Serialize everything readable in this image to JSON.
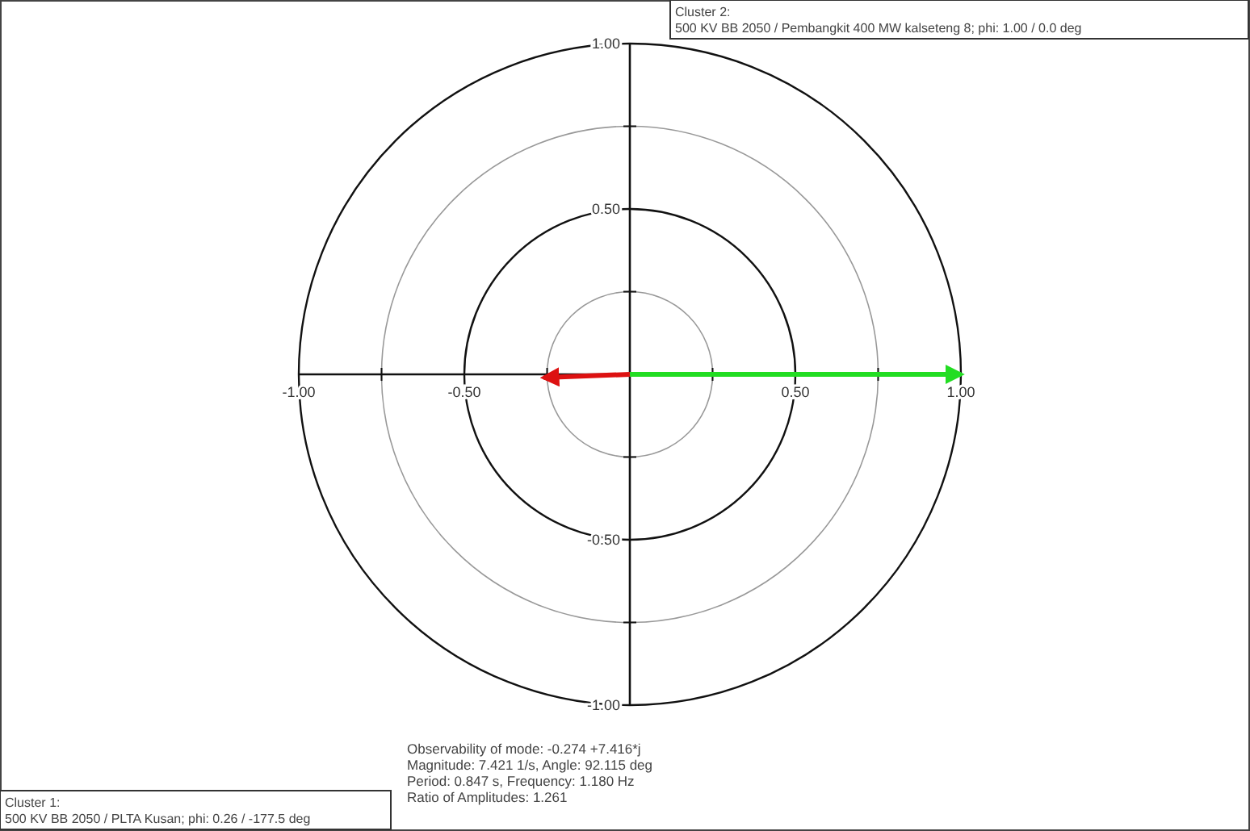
{
  "chart_data": {
    "type": "line",
    "xlim": [
      -1,
      1
    ],
    "ylim": [
      -1,
      1
    ],
    "xticks": [
      {
        "value": -1,
        "label": "-1.00"
      },
      {
        "value": -0.75,
        "label": null
      },
      {
        "value": -0.5,
        "label": "-0.50"
      },
      {
        "value": -0.25,
        "label": null
      },
      {
        "value": 0.25,
        "label": null
      },
      {
        "value": 0.5,
        "label": "0.50"
      },
      {
        "value": 0.75,
        "label": null
      },
      {
        "value": 1,
        "label": "1.00"
      }
    ],
    "yticks": [
      {
        "value": -1,
        "label": "-1.00"
      },
      {
        "value": -0.75,
        "label": null
      },
      {
        "value": -0.5,
        "label": "-0.50"
      },
      {
        "value": -0.25,
        "label": null
      },
      {
        "value": 0.25,
        "label": null
      },
      {
        "value": 0.5,
        "label": "0.50"
      },
      {
        "value": 0.75,
        "label": null
      },
      {
        "value": 1,
        "label": "1.00"
      }
    ],
    "series": [
      {
        "color": "#22dd22",
        "x": [
          0,
          1
        ],
        "values": [
          0,
          0
        ]
      },
      {
        "color": "#dd1111",
        "x": [
          0,
          -0.26
        ],
        "values": [
          0,
          -0.01
        ]
      }
    ],
    "annotations": [
      "Cluster 2:\n500 KV BB 2050 / Pembangkit 400 MW kalseteng 8; phi:  1.00 /   0.0 deg",
      "Cluster 1:\n500 KV BB 2050 / PLTA Kusan; phi:  0.26 / -177.5 deg",
      "Observability of mode: -0.274 +7.416*j",
      "Magnitude: 7.421 1/s,  Angle: 92.115 deg",
      "Period: 0.847 s,  Frequency: 1.180 Hz",
      "Ratio of Amplitudes: 1.261"
    ]
  }
}
